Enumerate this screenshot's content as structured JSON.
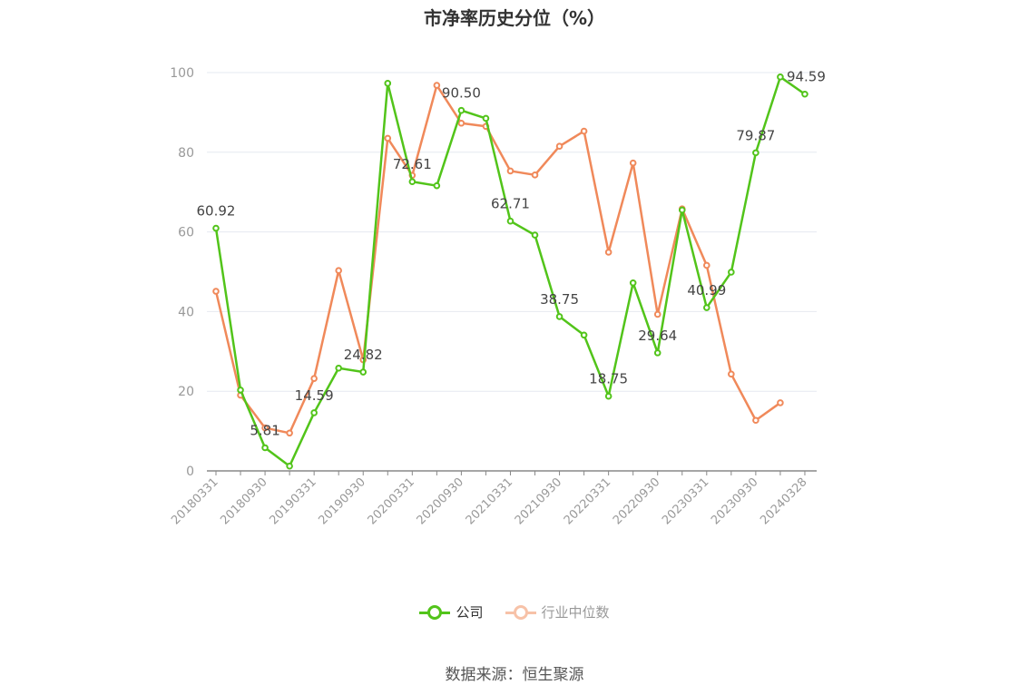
{
  "title": "市净率历史分位（%）",
  "source": "数据来源：恒生聚源",
  "chart_data": {
    "type": "line",
    "title": "市净率历史分位（%）",
    "ylim": [
      0,
      100
    ],
    "yticks": [
      0,
      20,
      40,
      60,
      80,
      100
    ],
    "x_tick_labels": [
      "20180331",
      "20180930",
      "20190331",
      "20190930",
      "20200331",
      "20200930",
      "20210331",
      "20210930",
      "20220331",
      "20220930",
      "20230331",
      "20230930",
      "20240328"
    ],
    "legend_position": "bottom-center",
    "grid": true,
    "series": [
      {
        "name": "公司",
        "color": "#52c41a",
        "values": [
          60.92,
          20.3,
          5.81,
          1.2,
          14.59,
          25.8,
          24.82,
          97.3,
          72.61,
          71.6,
          90.5,
          88.5,
          62.71,
          59.2,
          38.75,
          34.1,
          18.75,
          47.2,
          29.64,
          65.5,
          40.99,
          49.9,
          79.87,
          98.9,
          94.59
        ]
      },
      {
        "name": "行业中位数",
        "color": "#f0895a",
        "values": [
          45.1,
          19.0,
          10.8,
          9.5,
          23.2,
          50.3,
          27.9,
          83.5,
          74.2,
          96.8,
          87.3,
          86.5,
          75.3,
          74.3,
          81.5,
          85.3,
          54.9,
          77.3,
          39.3,
          65.8,
          51.6,
          24.3,
          12.7,
          17.1,
          null
        ]
      }
    ],
    "data_labels": [
      {
        "index": 0,
        "text": "60.92"
      },
      {
        "index": 2,
        "text": "5.81"
      },
      {
        "index": 4,
        "text": "14.59"
      },
      {
        "index": 6,
        "text": "24.82"
      },
      {
        "index": 8,
        "text": "72.61"
      },
      {
        "index": 10,
        "text": "90.50"
      },
      {
        "index": 12,
        "text": "62.71"
      },
      {
        "index": 14,
        "text": "38.75"
      },
      {
        "index": 16,
        "text": "18.75"
      },
      {
        "index": 18,
        "text": "29.64"
      },
      {
        "index": 20,
        "text": "40.99"
      },
      {
        "index": 22,
        "text": "79.87"
      },
      {
        "index": 24,
        "text": "94.59"
      }
    ]
  }
}
